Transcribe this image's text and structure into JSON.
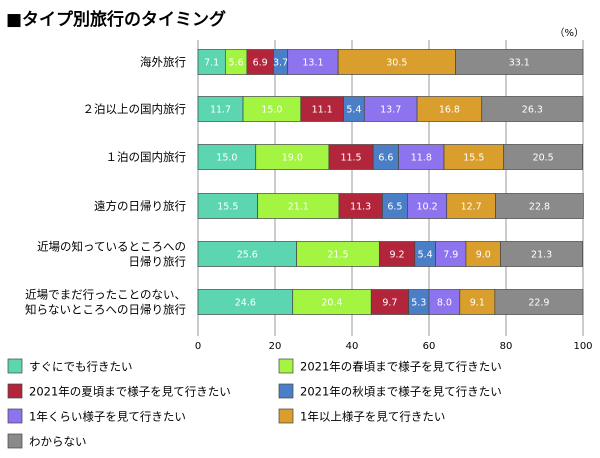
{
  "chart_data": {
    "type": "bar",
    "orientation": "horizontal",
    "stacked": true,
    "title": "■タイプ別旅行のタイミング",
    "unit": "（%）",
    "categories": [
      "海外旅行",
      "２泊以上の国内旅行",
      "１泊の国内旅行",
      "遠方の日帰り旅行",
      [
        "近場の知っているところへの",
        "日帰り旅行"
      ],
      [
        "近場でまだ行ったことのない、",
        "知らないところへの日帰り旅行"
      ]
    ],
    "series": [
      {
        "name": "すぐにでも行きたい",
        "color": "#5cd6b0",
        "values": [
          7.1,
          11.7,
          15.0,
          15.5,
          25.6,
          24.6
        ]
      },
      {
        "name": "2021年の春頃まで様子を見て行きたい",
        "color": "#a3f542",
        "values": [
          5.6,
          15.0,
          19.0,
          21.1,
          21.5,
          20.4
        ]
      },
      {
        "name": "2021年の夏頃まで様子を見て行きたい",
        "color": "#b3253a",
        "values": [
          6.9,
          11.1,
          11.5,
          11.3,
          9.2,
          9.7
        ]
      },
      {
        "name": "2021年の秋頃まで様子を見て行きたい",
        "color": "#4a7fc8",
        "values": [
          3.7,
          5.4,
          6.6,
          6.5,
          5.4,
          5.3
        ]
      },
      {
        "name": "1年くらい様子を見て行きたい",
        "color": "#8d74ee",
        "values": [
          13.1,
          13.7,
          11.8,
          10.2,
          7.9,
          8.0
        ]
      },
      {
        "name": "1年以上様子を見て行きたい",
        "color": "#d99e2b",
        "values": [
          30.5,
          16.8,
          15.5,
          12.7,
          9.0,
          9.1
        ]
      },
      {
        "name": "わからない",
        "color": "#8a8a8a",
        "values": [
          33.1,
          26.3,
          20.5,
          22.8,
          21.3,
          22.9
        ]
      }
    ],
    "xlim": [
      0,
      100
    ],
    "xticks": [
      0,
      20,
      40,
      60,
      80,
      100
    ],
    "grid": true,
    "legend_position": "bottom"
  }
}
